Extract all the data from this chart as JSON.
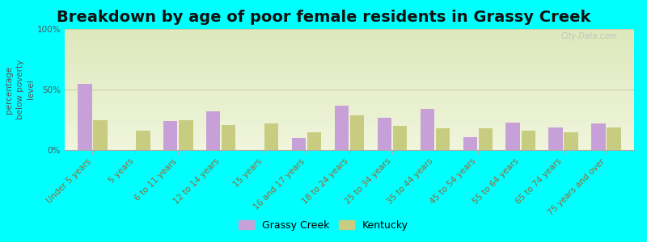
{
  "title": "Breakdown by age of poor female residents in Grassy Creek",
  "ylabel": "percentage\nbelow poverty\nlevel",
  "background_color": "#00FFFF",
  "plot_bg_top": "#dde8bb",
  "plot_bg_bottom": "#f0f5dc",
  "categories": [
    "Under 5 years",
    "5 years",
    "6 to 11 years",
    "12 to 14 years",
    "15 years",
    "16 and 17 years",
    "18 to 24 years",
    "25 to 34 years",
    "35 to 44 years",
    "45 to 54 years",
    "55 to 64 years",
    "65 to 74 years",
    "75 years and over"
  ],
  "grassy_creek": [
    55,
    0,
    24,
    32,
    0,
    10,
    37,
    27,
    34,
    11,
    23,
    19,
    22
  ],
  "kentucky": [
    25,
    16,
    25,
    21,
    22,
    15,
    29,
    20,
    18,
    18,
    16,
    15,
    19
  ],
  "grassy_color": "#c8a0d8",
  "kentucky_color": "#c8cc80",
  "ylim": [
    0,
    100
  ],
  "yticks": [
    0,
    50,
    100
  ],
  "ytick_labels": [
    "0%",
    "50%",
    "100%"
  ],
  "legend_grassy": "Grassy Creek",
  "legend_kentucky": "Kentucky",
  "watermark": "City-Data.com",
  "title_fontsize": 14,
  "axis_label_fontsize": 7.5,
  "tick_fontsize": 7.5,
  "legend_fontsize": 9
}
